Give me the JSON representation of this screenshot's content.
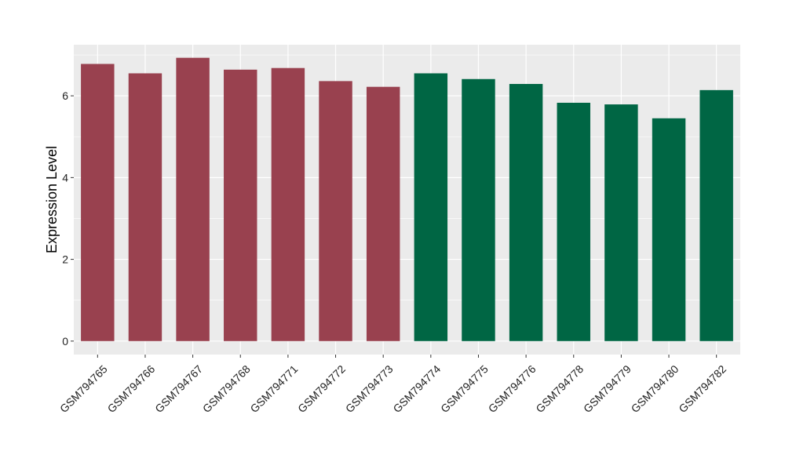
{
  "chart_data": {
    "type": "bar",
    "title": "",
    "xlabel": "",
    "ylabel": "Expression Level",
    "ylim": [
      -0.33,
      7.25
    ],
    "yticks": [
      0,
      2,
      4,
      6
    ],
    "grid": true,
    "panel_background": "#EBEBEB",
    "grid_color": "#FFFFFF",
    "categories": [
      "GSM794765",
      "GSM794766",
      "GSM794767",
      "GSM794768",
      "GSM794771",
      "GSM794772",
      "GSM794773",
      "GSM794774",
      "GSM794775",
      "GSM794776",
      "GSM794778",
      "GSM794779",
      "GSM794780",
      "GSM794782"
    ],
    "values": [
      6.78,
      6.55,
      6.93,
      6.64,
      6.68,
      6.36,
      6.22,
      6.55,
      6.41,
      6.29,
      5.83,
      5.79,
      5.45,
      6.14
    ],
    "bar_colors": [
      "#99414F",
      "#99414F",
      "#99414F",
      "#99414F",
      "#99414F",
      "#99414F",
      "#99414F",
      "#006644",
      "#006644",
      "#006644",
      "#006644",
      "#006644",
      "#006644",
      "#006644"
    ]
  }
}
